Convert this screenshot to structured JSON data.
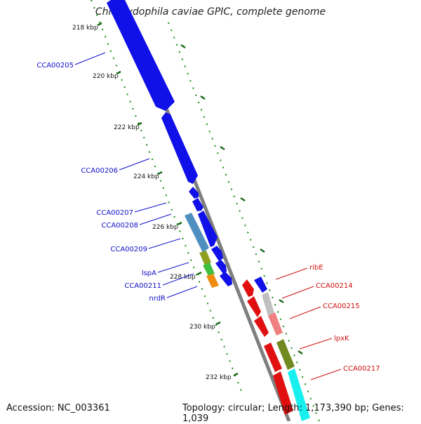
{
  "title": "Chlamydophila caviae GPIC, complete genome",
  "footer": {
    "accession": "Accession: NC_003361",
    "summary": "Topology: circular; Length: 1,173,390 bp; Genes: 1,039"
  },
  "scale": {
    "ticks": [
      "218 kbp",
      "220 kbp",
      "222 kbp",
      "224 kbp",
      "226 kbp",
      "228 kbp",
      "230 kbp",
      "232 kbp"
    ]
  },
  "genes": {
    "left": [
      {
        "label": "CCA00205",
        "color": "#1f1fd0"
      },
      {
        "label": "CCA00206",
        "color": "#1f1fd0"
      },
      {
        "label": "CCA00207",
        "color": "#1f1fd0"
      },
      {
        "label": "CCA00208",
        "color": "#1f1fd0"
      },
      {
        "label": "CCA00209",
        "color": "#1f1fd0"
      },
      {
        "label": "lspA",
        "color": "#1f1fd0"
      },
      {
        "label": "CCA00211",
        "color": "#1f1fd0"
      },
      {
        "label": "nrdR",
        "color": "#1f1fd0"
      }
    ],
    "right": [
      {
        "label": "ribE",
        "color": "#d02020"
      },
      {
        "label": "CCA00214",
        "color": "#d02020"
      },
      {
        "label": "CCA00215",
        "color": "#d02020"
      },
      {
        "label": "lpxK",
        "color": "#d02020"
      },
      {
        "label": "CCA00217",
        "color": "#d02020"
      }
    ]
  }
}
